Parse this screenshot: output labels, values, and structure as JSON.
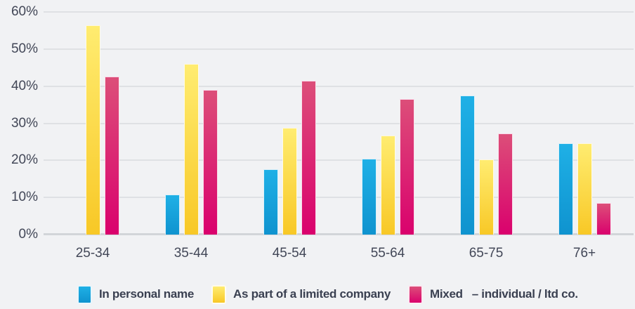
{
  "chart_data": {
    "type": "bar",
    "categories": [
      "25-34",
      "35-44",
      "45-54",
      "55-64",
      "65-75",
      "76+"
    ],
    "series": [
      {
        "name": "In personal name",
        "values": [
          0,
          10.8,
          17.6,
          20.4,
          37.5,
          24.7
        ],
        "color_top": "#1fb0e6",
        "color_bottom": "#0f93cf"
      },
      {
        "name": "As part of a limited company",
        "values": [
          56.5,
          46.0,
          28.7,
          26.7,
          20.2,
          24.6
        ],
        "color_top": "#ffec70",
        "color_bottom": "#f8c826"
      },
      {
        "name": "Mixed – individual / ltd co.",
        "values": [
          42.5,
          39.0,
          41.5,
          36.5,
          27.3,
          8.5
        ],
        "color_top": "#dc4e79",
        "color_bottom": "#da016d"
      }
    ],
    "y_axis": {
      "min": 0,
      "max": 60,
      "step": 10,
      "tick_labels": [
        "0%",
        "10%",
        "20%",
        "30%",
        "40%",
        "50%",
        "60%"
      ],
      "unit": "%"
    },
    "grid": true,
    "legend_position": "bottom"
  },
  "legend": {
    "items": [
      {
        "label": "In personal name"
      },
      {
        "label": "As part of a limited company"
      },
      {
        "label": "Mixed",
        "suffix": "– individual / ltd co."
      }
    ]
  },
  "colors": {
    "background": "#f1f2f4",
    "gridline": "#dfe1e4",
    "baseline": "#d2d5d9",
    "axis_text": "#424757",
    "legend_text": "#3a4051"
  }
}
